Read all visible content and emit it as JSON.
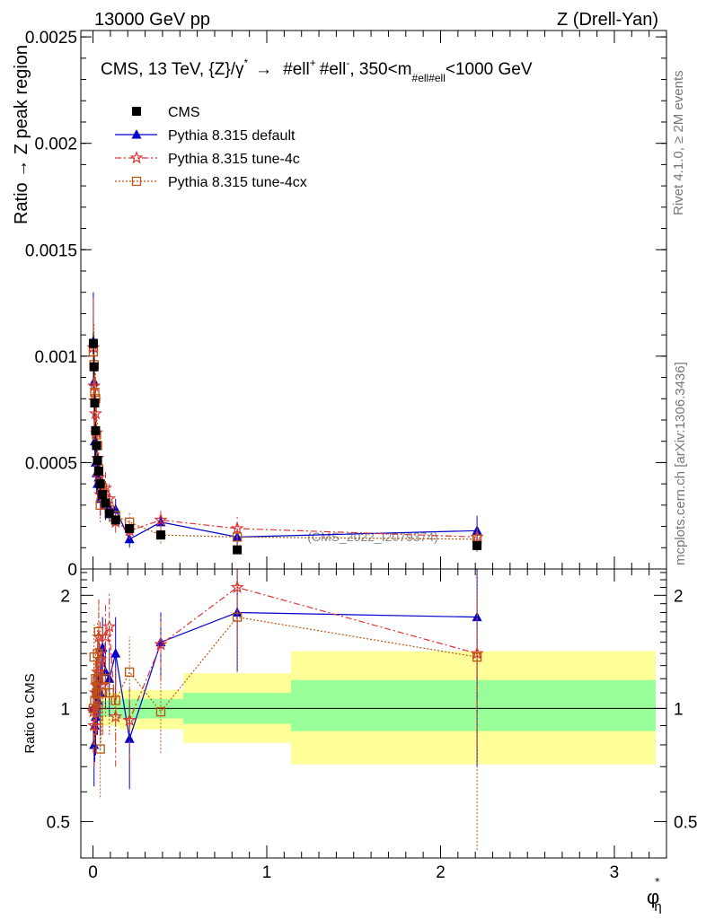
{
  "header": {
    "left": "13000 GeV pp",
    "right": "Z (Drell-Yan)"
  },
  "side_texts": {
    "rivet": "Rivet 4.1.0, ≥ 2M events",
    "mcplots": "mcplots.cern.ch [arXiv:1306.3436]"
  },
  "watermark": "(CMS_2022_I2079374)",
  "colors": {
    "cms": "#000000",
    "default": "#0000cc",
    "tune4c": "#dd3333",
    "tune4cx": "#bb5511",
    "band_inner": "#99ff99",
    "band_outer": "#ffff99"
  },
  "chart_data": [
    {
      "type": "scatter",
      "title": "CMS, 13 TeV, {Z}/γ* → #ell⁺ #ell⁻, 350<m#ell#ell<1000 GeV",
      "title_parts": {
        "main": "CMS, 13 TeV, {Z}/γ",
        "star": "*",
        "arrow": "→",
        "ell1": "#ell",
        "plus": "+",
        "ell2": "#ell",
        "minus": "-",
        "mid": ", 350<m",
        "sub": "#ell#ell",
        "tail": "<1000 GeV"
      },
      "ylabel": "Ratio → Z peak region",
      "xlim": [
        -0.07,
        3.3
      ],
      "ylim": [
        0,
        0.00253
      ],
      "yticks": [
        {
          "v": 0,
          "label": "0"
        },
        {
          "v": 0.0005,
          "label": "0.0005"
        },
        {
          "v": 0.001,
          "label": "0.001"
        },
        {
          "v": 0.0015,
          "label": "0.0015"
        },
        {
          "v": 0.002,
          "label": "0.002"
        },
        {
          "v": 0.0025,
          "label": "0.0025"
        }
      ],
      "legend": [
        {
          "key": "cms",
          "label": "CMS"
        },
        {
          "key": "default",
          "label": "Pythia 8.315 default"
        },
        {
          "key": "tune4c",
          "label": "Pythia 8.315 tune-4c"
        },
        {
          "key": "tune4cx",
          "label": "Pythia 8.315 tune-4cx"
        }
      ],
      "series": [
        {
          "key": "cms",
          "name": "CMS",
          "marker": "square",
          "x": [
            0.002,
            0.006,
            0.01,
            0.015,
            0.02,
            0.026,
            0.033,
            0.042,
            0.055,
            0.072,
            0.094,
            0.13,
            0.21,
            0.39,
            0.83,
            2.21
          ],
          "y": [
            0.00106,
            0.00095,
            0.00078,
            0.00065,
            0.00058,
            0.00051,
            0.00046,
            0.0004,
            0.00035,
            0.00031,
            0.00026,
            0.00023,
            0.00019,
            0.00016,
            9e-05,
            0.00011
          ],
          "err": [
            5e-05,
            5e-05,
            4e-05,
            4e-05,
            3e-05,
            3e-05,
            3e-05,
            3e-05,
            2e-05,
            2e-05,
            2e-05,
            2e-05,
            1e-05,
            1e-05,
            1e-05,
            1e-05
          ]
        },
        {
          "key": "default",
          "name": "Pythia 8.315 default",
          "marker": "triangle",
          "x": [
            0.002,
            0.006,
            0.01,
            0.015,
            0.02,
            0.026,
            0.033,
            0.042,
            0.055,
            0.072,
            0.094,
            0.13,
            0.21,
            0.39,
            0.83,
            2.21
          ],
          "y": [
            0.00107,
            0.00088,
            0.0006,
            0.0005,
            0.00045,
            0.0004,
            0.00043,
            0.00033,
            0.00037,
            0.0003,
            0.00029,
            0.00028,
            0.00014,
            0.00022,
            0.00015,
            0.00018
          ],
          "err": [
            0.00023,
            0.00018,
            0.00013,
            0.00011,
            0.0001,
            9e-05,
            9e-05,
            8e-05,
            8e-05,
            7e-05,
            6e-05,
            5e-05,
            4e-05,
            5e-05,
            4e-05,
            7e-05
          ]
        },
        {
          "key": "tune4c",
          "name": "Pythia 8.315 tune-4c",
          "marker": "star",
          "x": [
            0.002,
            0.006,
            0.01,
            0.015,
            0.02,
            0.026,
            0.033,
            0.042,
            0.055,
            0.072,
            0.094,
            0.13,
            0.21,
            0.39,
            0.83,
            2.21
          ],
          "y": [
            0.00104,
            0.00086,
            0.00079,
            0.00073,
            0.00064,
            0.00052,
            0.00043,
            0.00035,
            0.00036,
            0.00038,
            0.00033,
            0.00022,
            0.00018,
            0.00023,
            0.00019,
            0.00015
          ],
          "err": [
            0.00024,
            0.00019,
            0.00017,
            0.00016,
            0.00014,
            0.00012,
            0.0001,
            9e-05,
            8e-05,
            8e-05,
            7e-05,
            5e-05,
            4e-05,
            5e-05,
            6e-05,
            6e-05
          ]
        },
        {
          "key": "tune4cx",
          "name": "Pythia 8.315 tune-4cx",
          "marker": "open-square",
          "x": [
            0.002,
            0.006,
            0.01,
            0.015,
            0.02,
            0.026,
            0.033,
            0.042,
            0.055,
            0.072,
            0.094,
            0.13,
            0.21,
            0.39,
            0.83,
            2.21
          ],
          "y": [
            0.00102,
            0.00096,
            0.00083,
            0.0008,
            0.00063,
            0.00058,
            0.00047,
            0.0003,
            0.00038,
            0.00031,
            0.00028,
            0.00025,
            0.00022,
            0.00016,
            0.00015,
            0.00014
          ],
          "err": [
            0.00023,
            0.00019,
            0.00017,
            0.00016,
            0.00013,
            0.00012,
            0.0001,
            8e-05,
            8e-05,
            7e-05,
            6e-05,
            5e-05,
            5e-05,
            4e-05,
            4e-05,
            6e-05
          ]
        }
      ]
    },
    {
      "type": "scatter",
      "ylabel": "Ratio to CMS",
      "xlabel": "φ*η",
      "xlabel_parts": {
        "phi": "φ",
        "star": "*",
        "eta": "η"
      },
      "xlim": [
        -0.07,
        3.3
      ],
      "ylim": [
        0.4,
        2.35
      ],
      "yscale": "log",
      "xticks": [
        {
          "v": 0,
          "label": "0"
        },
        {
          "v": 1,
          "label": "1"
        },
        {
          "v": 2,
          "label": "2"
        },
        {
          "v": 3,
          "label": "3"
        }
      ],
      "yticks": [
        {
          "v": 0.5,
          "label": "0.5"
        },
        {
          "v": 1,
          "label": "1"
        },
        {
          "v": 2,
          "label": "2"
        }
      ],
      "bands": [
        {
          "x0": 0.0,
          "x1": 0.03,
          "inner": [
            0.96,
            1.04
          ],
          "outer": [
            0.92,
            1.08
          ]
        },
        {
          "x0": 0.03,
          "x1": 0.15,
          "inner": [
            0.95,
            1.05
          ],
          "outer": [
            0.9,
            1.1
          ]
        },
        {
          "x0": 0.15,
          "x1": 0.52,
          "inner": [
            0.94,
            1.06
          ],
          "outer": [
            0.88,
            1.12
          ]
        },
        {
          "x0": 0.52,
          "x1": 1.14,
          "inner": [
            0.91,
            1.1
          ],
          "outer": [
            0.81,
            1.24
          ]
        },
        {
          "x0": 1.14,
          "x1": 3.3,
          "inner": [
            0.87,
            1.19
          ],
          "outer": [
            0.71,
            1.42
          ]
        }
      ],
      "series": [
        {
          "key": "default",
          "marker": "triangle",
          "x": [
            0.002,
            0.006,
            0.01,
            0.015,
            0.02,
            0.026,
            0.033,
            0.042,
            0.055,
            0.072,
            0.094,
            0.13,
            0.21,
            0.39,
            0.83,
            2.21
          ],
          "y": [
            1.0,
            0.8,
            0.9,
            0.95,
            1.1,
            1.05,
            1.2,
            1.1,
            1.45,
            1.25,
            1.2,
            1.4,
            0.83,
            1.5,
            1.8,
            1.75
          ],
          "err": [
            0.22,
            0.18,
            0.18,
            0.2,
            0.25,
            0.2,
            0.25,
            0.25,
            0.3,
            0.25,
            0.25,
            0.35,
            0.22,
            0.3,
            0.55,
            1.05
          ]
        },
        {
          "key": "tune4c",
          "marker": "star",
          "x": [
            0.002,
            0.006,
            0.01,
            0.015,
            0.02,
            0.026,
            0.033,
            0.042,
            0.055,
            0.072,
            0.094,
            0.13,
            0.21,
            0.39,
            0.83,
            2.21
          ],
          "y": [
            0.98,
            0.9,
            1.0,
            1.1,
            1.15,
            1.25,
            1.55,
            1.35,
            1.15,
            1.55,
            1.65,
            0.95,
            0.93,
            1.48,
            2.1,
            1.4
          ],
          "err": [
            0.22,
            0.2,
            0.2,
            0.25,
            0.3,
            0.3,
            0.4,
            0.35,
            0.3,
            0.35,
            0.4,
            0.25,
            0.2,
            0.3,
            0.6,
            0.6
          ]
        },
        {
          "key": "tune4cx",
          "marker": "open-square",
          "x": [
            0.002,
            0.006,
            0.01,
            0.015,
            0.02,
            0.026,
            0.033,
            0.042,
            0.055,
            0.072,
            0.094,
            0.13,
            0.21,
            0.39,
            0.83,
            2.21
          ],
          "y": [
            1.0,
            1.37,
            1.05,
            1.2,
            1.1,
            1.4,
            1.6,
            0.78,
            1.1,
            1.2,
            1.1,
            1.05,
            1.25,
            0.98,
            1.75,
            1.37
          ],
          "err": [
            0.22,
            0.3,
            0.22,
            0.25,
            0.25,
            0.3,
            0.35,
            0.2,
            0.25,
            0.25,
            0.25,
            0.25,
            0.3,
            0.22,
            0.5,
            0.95
          ]
        }
      ]
    }
  ]
}
